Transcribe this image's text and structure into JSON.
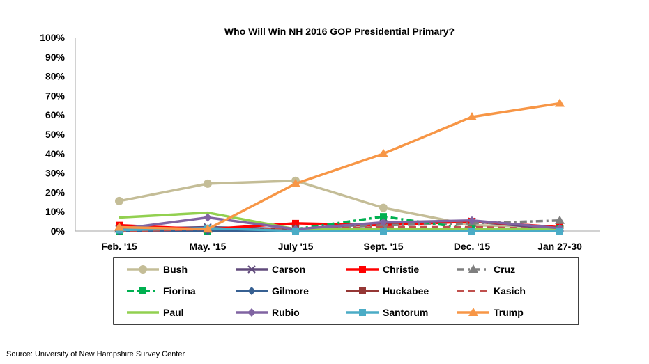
{
  "chart_data": {
    "type": "line",
    "title": "Who Will Win NH 2016 GOP Presidential Primary?",
    "xlabel": "",
    "ylabel": "",
    "categories": [
      "Feb. '15",
      "May. '15",
      "July '15",
      "Sept. '15",
      "Dec. '15",
      "Jan 27-30"
    ],
    "ylim": [
      0,
      100
    ],
    "yticks": [
      "0%",
      "10%",
      "20%",
      "30%",
      "40%",
      "50%",
      "60%",
      "70%",
      "80%",
      "90%",
      "100%"
    ],
    "grid": false,
    "legend_position": "bottom",
    "series": [
      {
        "name": "Bush",
        "color": "#c4bd97",
        "marker": "circle",
        "dash": "solid",
        "values": [
          15.5,
          24.5,
          26,
          12,
          3,
          2
        ]
      },
      {
        "name": "Carson",
        "color": "#604a7b",
        "marker": "x",
        "dash": "solid",
        "values": [
          1,
          2,
          1,
          4,
          5,
          1
        ]
      },
      {
        "name": "Christie",
        "color": "#ff0000",
        "marker": "square",
        "dash": "solid",
        "values": [
          3,
          1,
          4,
          3,
          5,
          2
        ]
      },
      {
        "name": "Cruz",
        "color": "#7f7f7f",
        "marker": "triangle",
        "dash": "dashdot",
        "values": [
          1,
          1,
          1,
          3,
          4,
          5.5
        ]
      },
      {
        "name": "Fiorina",
        "color": "#00b050",
        "marker": "square",
        "dash": "dashdot",
        "values": [
          0,
          0,
          1,
          7.5,
          1,
          1
        ]
      },
      {
        "name": "Gilmore",
        "color": "#376092",
        "marker": "diamond",
        "dash": "solid",
        "values": [
          0,
          0,
          0,
          0,
          0,
          0
        ]
      },
      {
        "name": "Huckabee",
        "color": "#953735",
        "marker": "square",
        "dash": "solid",
        "values": [
          1,
          1,
          1,
          0,
          0,
          0
        ]
      },
      {
        "name": "Kasich",
        "color": "#c0504d",
        "marker": "none",
        "dash": "dash",
        "values": [
          0,
          1,
          1,
          2,
          2,
          1
        ]
      },
      {
        "name": "Paul",
        "color": "#92d050",
        "marker": "none",
        "dash": "solid",
        "values": [
          7,
          9.5,
          1,
          1,
          1,
          1
        ]
      },
      {
        "name": "Rubio",
        "color": "#8064a2",
        "marker": "diamond",
        "dash": "solid",
        "values": [
          1,
          7,
          1,
          4.5,
          5.5,
          1.5
        ]
      },
      {
        "name": "Santorum",
        "color": "#4bacc6",
        "marker": "square",
        "dash": "solid",
        "values": [
          0.5,
          1.5,
          0,
          0,
          0,
          0
        ]
      },
      {
        "name": "Trump",
        "color": "#f79646",
        "marker": "triangle",
        "dash": "solid",
        "values": [
          2,
          1,
          24.5,
          40,
          59,
          66
        ]
      }
    ]
  },
  "source": "Source: University of New Hampshire Survey Center"
}
